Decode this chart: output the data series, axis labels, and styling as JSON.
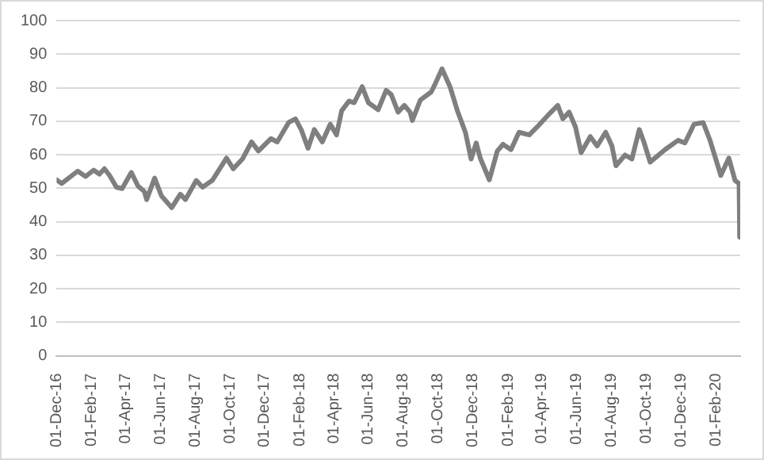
{
  "chart_data": {
    "type": "line",
    "x": [
      "2016-12-01",
      "2016-12-10",
      "2017-01-07",
      "2017-01-21",
      "2017-02-04",
      "2017-02-14",
      "2017-02-23",
      "2017-03-04",
      "2017-03-16",
      "2017-03-26",
      "2017-04-11",
      "2017-04-23",
      "2017-05-04",
      "2017-05-08",
      "2017-05-22",
      "2017-06-03",
      "2017-06-21",
      "2017-07-06",
      "2017-07-15",
      "2017-08-03",
      "2017-08-14",
      "2017-08-31",
      "2017-09-25",
      "2017-10-07",
      "2017-10-23",
      "2017-11-08",
      "2017-11-20",
      "2017-12-12",
      "2017-12-23",
      "2018-01-12",
      "2018-01-24",
      "2018-02-03",
      "2018-02-15",
      "2018-02-26",
      "2018-03-12",
      "2018-03-26",
      "2018-04-06",
      "2018-04-15",
      "2018-04-28",
      "2018-05-07",
      "2018-05-21",
      "2018-06-01",
      "2018-06-18",
      "2018-07-02",
      "2018-07-11",
      "2018-07-23",
      "2018-08-03",
      "2018-08-13",
      "2018-08-17",
      "2018-08-31",
      "2018-09-19",
      "2018-09-26",
      "2018-10-08",
      "2018-10-22",
      "2018-11-04",
      "2018-11-18",
      "2018-11-28",
      "2018-12-07",
      "2018-12-14",
      "2018-12-30",
      "2019-01-13",
      "2019-01-23",
      "2019-02-06",
      "2019-02-20",
      "2019-03-10",
      "2019-03-24",
      "2019-04-12",
      "2019-04-29",
      "2019-05-08",
      "2019-05-19",
      "2019-05-30",
      "2019-06-09",
      "2019-06-25",
      "2019-07-07",
      "2019-07-22",
      "2019-08-02",
      "2019-08-09",
      "2019-08-25",
      "2019-09-06",
      "2019-09-19",
      "2019-09-27",
      "2019-10-08",
      "2019-11-03",
      "2019-11-26",
      "2019-12-08",
      "2019-12-24",
      "2020-01-09",
      "2020-01-21",
      "2020-02-09",
      "2020-02-23",
      "2020-03-05",
      "2020-03-12",
      "2020-03-13"
    ],
    "series": [
      {
        "color": "#7f7f7f",
        "values": [
          52.5,
          51.4,
          55.1,
          53.5,
          55.4,
          54.2,
          55.8,
          53.8,
          50.3,
          49.9,
          54.7,
          50.6,
          49,
          46.6,
          53,
          47.7,
          44.2,
          48.2,
          46.6,
          52.3,
          50.3,
          52.3,
          59,
          55.8,
          58.7,
          63.8,
          61.1,
          64.8,
          63.8,
          69.6,
          70.7,
          67.5,
          61.9,
          67.5,
          63.8,
          69.1,
          65.9,
          73.1,
          76,
          75.5,
          80.3,
          75.5,
          73.4,
          79.2,
          77.9,
          72.7,
          74.7,
          72.7,
          70.2,
          76.3,
          78.7,
          81.1,
          85.6,
          80.3,
          73.1,
          66.7,
          58.7,
          63.5,
          59,
          52.5,
          61.1,
          63.1,
          61.5,
          66.7,
          65.9,
          68.3,
          71.8,
          74.7,
          70.7,
          72.7,
          68.3,
          60.6,
          65.4,
          62.6,
          66.7,
          62.6,
          56.7,
          59.9,
          58.7,
          67.5,
          63.8,
          57.8,
          61.5,
          64.3,
          63.5,
          69.1,
          69.6,
          64.3,
          53.8,
          59,
          52.3,
          51.4,
          35.4
        ]
      }
    ],
    "xlim": [
      "2016-12-01",
      "2020-03-14"
    ],
    "xticks": [
      {
        "value": "2016-12-01",
        "label": "01-Dec-16"
      },
      {
        "value": "2017-02-01",
        "label": "01-Feb-17"
      },
      {
        "value": "2017-04-01",
        "label": "01-Apr-17"
      },
      {
        "value": "2017-06-01",
        "label": "01-Jun-17"
      },
      {
        "value": "2017-08-01",
        "label": "01-Aug-17"
      },
      {
        "value": "2017-10-01",
        "label": "01-Oct-17"
      },
      {
        "value": "2017-12-01",
        "label": "01-Dec-17"
      },
      {
        "value": "2018-02-01",
        "label": "01-Feb-18"
      },
      {
        "value": "2018-04-01",
        "label": "01-Apr-18"
      },
      {
        "value": "2018-06-01",
        "label": "01-Jun-18"
      },
      {
        "value": "2018-08-01",
        "label": "01-Aug-18"
      },
      {
        "value": "2018-10-01",
        "label": "01-Oct-18"
      },
      {
        "value": "2018-12-01",
        "label": "01-Dec-18"
      },
      {
        "value": "2019-02-01",
        "label": "01-Feb-19"
      },
      {
        "value": "2019-04-01",
        "label": "01-Apr-19"
      },
      {
        "value": "2019-06-01",
        "label": "01-Jun-19"
      },
      {
        "value": "2019-08-01",
        "label": "01-Aug-19"
      },
      {
        "value": "2019-10-01",
        "label": "01-Oct-19"
      },
      {
        "value": "2019-12-01",
        "label": "01-Dec-19"
      },
      {
        "value": "2020-02-01",
        "label": "01-Feb-20"
      }
    ],
    "ylim": [
      0,
      100
    ],
    "yticks": [
      0,
      10,
      20,
      30,
      40,
      50,
      60,
      70,
      80,
      90,
      100
    ],
    "grid": "y",
    "legend": false
  }
}
